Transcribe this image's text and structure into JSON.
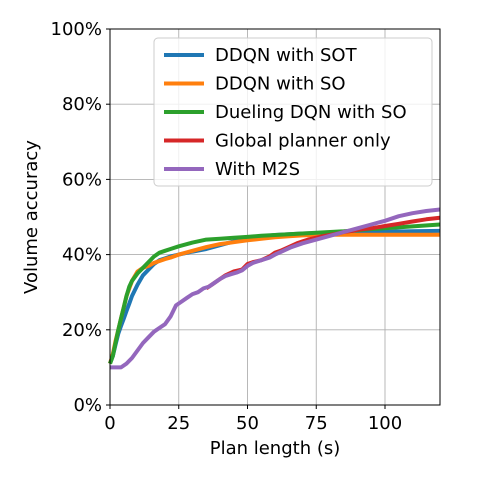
{
  "chart_data": {
    "type": "line",
    "xlabel": "Plan length (s)",
    "ylabel": "Volume accuracy",
    "xlim": [
      0,
      120
    ],
    "ylim": [
      0,
      100
    ],
    "x_ticks": [
      0,
      25,
      50,
      75,
      100
    ],
    "x_tick_labels": [
      "0",
      "25",
      "50",
      "75",
      "100"
    ],
    "y_ticks": [
      0,
      20,
      40,
      60,
      80,
      100
    ],
    "y_tick_labels": [
      "0%",
      "20%",
      "40%",
      "60%",
      "80%",
      "100%"
    ],
    "grid": true,
    "legend_position": "top-right",
    "series": [
      {
        "name": "DDQN with SOT",
        "color": "#1f77b4",
        "x": [
          0,
          1,
          2,
          3,
          4,
          5,
          6,
          7,
          8,
          10,
          12,
          14,
          16,
          18,
          20,
          22,
          25,
          30,
          35,
          40,
          45,
          50,
          55,
          60,
          65,
          70,
          75,
          80,
          85,
          90,
          95,
          100,
          110,
          120
        ],
        "y": [
          11,
          13,
          16,
          19,
          21,
          23,
          25,
          27,
          29,
          32,
          34.5,
          36,
          37.5,
          38.5,
          39,
          39.5,
          40,
          40.8,
          41.5,
          42.5,
          43.5,
          44.2,
          44.8,
          45.2,
          45.4,
          45.6,
          45.7,
          45.8,
          45.9,
          46,
          46,
          46.1,
          46.2,
          46.3
        ]
      },
      {
        "name": "DDQN with SO",
        "color": "#ff7f0e",
        "x": [
          0,
          1,
          2,
          3,
          4,
          5,
          6,
          7,
          8,
          10,
          12,
          14,
          16,
          18,
          20,
          22,
          25,
          30,
          35,
          40,
          45,
          50,
          55,
          60,
          65,
          70,
          75,
          80,
          85,
          90,
          95,
          100,
          110,
          120
        ],
        "y": [
          11,
          13.5,
          17,
          20,
          23,
          26,
          29,
          31,
          33,
          35.5,
          36.5,
          37,
          37.8,
          38.3,
          38.8,
          39.2,
          40,
          41,
          42,
          42.8,
          43.3,
          43.8,
          44.2,
          44.6,
          44.9,
          45.1,
          45.2,
          45.3,
          45.3,
          45.3,
          45.3,
          45.3,
          45.3,
          45.3
        ]
      },
      {
        "name": "Dueling DQN with SO",
        "color": "#2ca02c",
        "x": [
          0,
          1,
          2,
          3,
          4,
          5,
          6,
          7,
          8,
          10,
          12,
          14,
          16,
          18,
          20,
          22,
          25,
          30,
          35,
          40,
          45,
          50,
          55,
          60,
          65,
          70,
          75,
          80,
          85,
          90,
          95,
          100,
          110,
          120
        ],
        "y": [
          11,
          13,
          16.5,
          20,
          23,
          26,
          29,
          31.5,
          33,
          35,
          36.5,
          38,
          39.5,
          40.5,
          41,
          41.5,
          42.2,
          43.2,
          44,
          44.2,
          44.5,
          44.7,
          45,
          45.2,
          45.4,
          45.6,
          45.8,
          46,
          46.2,
          46.5,
          46.8,
          47,
          47.5,
          48
        ]
      },
      {
        "name": "Global planner only",
        "color": "#d62728",
        "x": [
          35,
          37,
          40,
          42,
          45,
          48,
          50,
          52,
          55,
          58,
          60,
          62,
          65,
          68,
          70,
          72,
          75,
          78,
          80,
          83,
          85,
          88,
          90,
          95,
          100,
          105,
          110,
          115,
          120
        ],
        "y": [
          31,
          32,
          33.5,
          34.5,
          35.5,
          36,
          37.5,
          38,
          38.5,
          39.5,
          40.5,
          41,
          42,
          43,
          43.5,
          44,
          44.5,
          45,
          45.2,
          45.6,
          46,
          46.3,
          46.6,
          47,
          47.6,
          48.2,
          48.8,
          49.4,
          49.8
        ]
      },
      {
        "name": "With M2S",
        "color": "#9467bd",
        "x": [
          0,
          2,
          4,
          6,
          8,
          10,
          12,
          14,
          16,
          18,
          20,
          22,
          24,
          26,
          28,
          30,
          32,
          34,
          36,
          38,
          40,
          42,
          44,
          46,
          48,
          50,
          52,
          55,
          58,
          60,
          63,
          66,
          70,
          75,
          80,
          85,
          90,
          95,
          100,
          105,
          110,
          115,
          120
        ],
        "y": [
          10,
          10,
          10,
          11,
          12.5,
          14.5,
          16.5,
          18,
          19.5,
          20.5,
          21.5,
          23.5,
          26.5,
          27.5,
          28.5,
          29.5,
          30,
          31,
          31.5,
          32.5,
          33.5,
          34.3,
          34.8,
          35.2,
          35.8,
          37,
          37.8,
          38.5,
          39.2,
          40,
          41,
          42,
          43,
          44,
          45,
          46,
          47,
          48,
          49,
          50.2,
          51,
          51.6,
          52
        ]
      }
    ]
  }
}
